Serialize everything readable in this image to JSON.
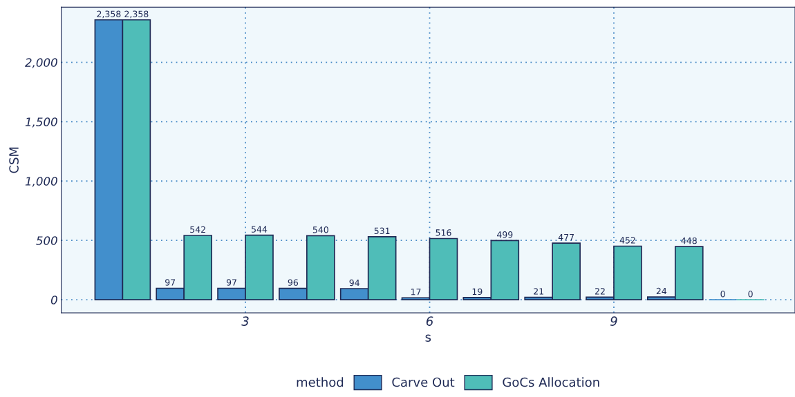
{
  "chart_data": {
    "type": "bar",
    "xlabel": "s",
    "ylabel": "CSM",
    "legend_title": "method",
    "x": [
      1,
      2,
      3,
      4,
      5,
      6,
      7,
      8,
      9,
      10,
      11
    ],
    "series": [
      {
        "name": "Carve Out",
        "color": "#428fcc",
        "values": [
          2358,
          97,
          97,
          96,
          94,
          17,
          19,
          21,
          22,
          24,
          0
        ],
        "value_labels": [
          "2,358",
          "97",
          "97",
          "96",
          "94",
          "17",
          "19",
          "21",
          "22",
          "24",
          "0"
        ]
      },
      {
        "name": "GoCs Allocation",
        "color": "#4fbdb8",
        "values": [
          2358,
          542,
          544,
          540,
          531,
          516,
          499,
          477,
          452,
          448,
          0
        ],
        "value_labels": [
          "2,358",
          "542",
          "544",
          "540",
          "531",
          "516",
          "499",
          "477",
          "452",
          "448",
          "0"
        ]
      }
    ],
    "xlim": [
      0.0,
      11.95
    ],
    "xticks": [
      3,
      6,
      9
    ],
    "ylim": [
      -110,
      2465
    ],
    "yticks": [
      0,
      {
        "value": 500,
        "label": "500"
      },
      {
        "value": 1000,
        "label": "1,000"
      },
      {
        "value": 1500,
        "label": "1,500"
      },
      {
        "value": 2000,
        "label": "2,000"
      }
    ],
    "grid": true,
    "legend": "bottom"
  }
}
